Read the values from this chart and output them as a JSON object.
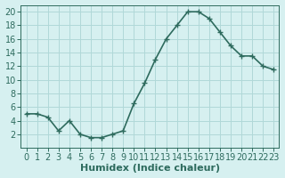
{
  "x": [
    0,
    1,
    2,
    3,
    4,
    5,
    6,
    7,
    8,
    9,
    10,
    11,
    12,
    13,
    14,
    15,
    16,
    17,
    18,
    19,
    20,
    21,
    22,
    23
  ],
  "y": [
    5,
    5,
    4.5,
    2.5,
    4,
    2,
    1.5,
    1.5,
    2,
    2.5,
    6.5,
    9.5,
    13,
    16,
    18,
    20,
    20,
    19,
    17,
    15,
    13.5,
    13.5,
    12,
    11.5
  ],
  "line_color": "#2e6b5e",
  "marker": "+",
  "bg_color": "#d6f0f0",
  "grid_color": "#b0d8d8",
  "xlabel": "Humidex (Indice chaleur)",
  "ylabel": "",
  "title": "",
  "xlim": [
    -0.5,
    23.5
  ],
  "ylim": [
    0,
    21
  ],
  "yticks": [
    2,
    4,
    6,
    8,
    10,
    12,
    14,
    16,
    18,
    20
  ],
  "xticks": [
    0,
    1,
    2,
    3,
    4,
    5,
    6,
    7,
    8,
    9,
    10,
    11,
    12,
    13,
    14,
    15,
    16,
    17,
    18,
    19,
    20,
    21,
    22,
    23
  ],
  "tick_color": "#2e6b5e",
  "label_color": "#2e6b5e",
  "font_size": 7,
  "xlabel_fontsize": 8,
  "linewidth": 1.2
}
